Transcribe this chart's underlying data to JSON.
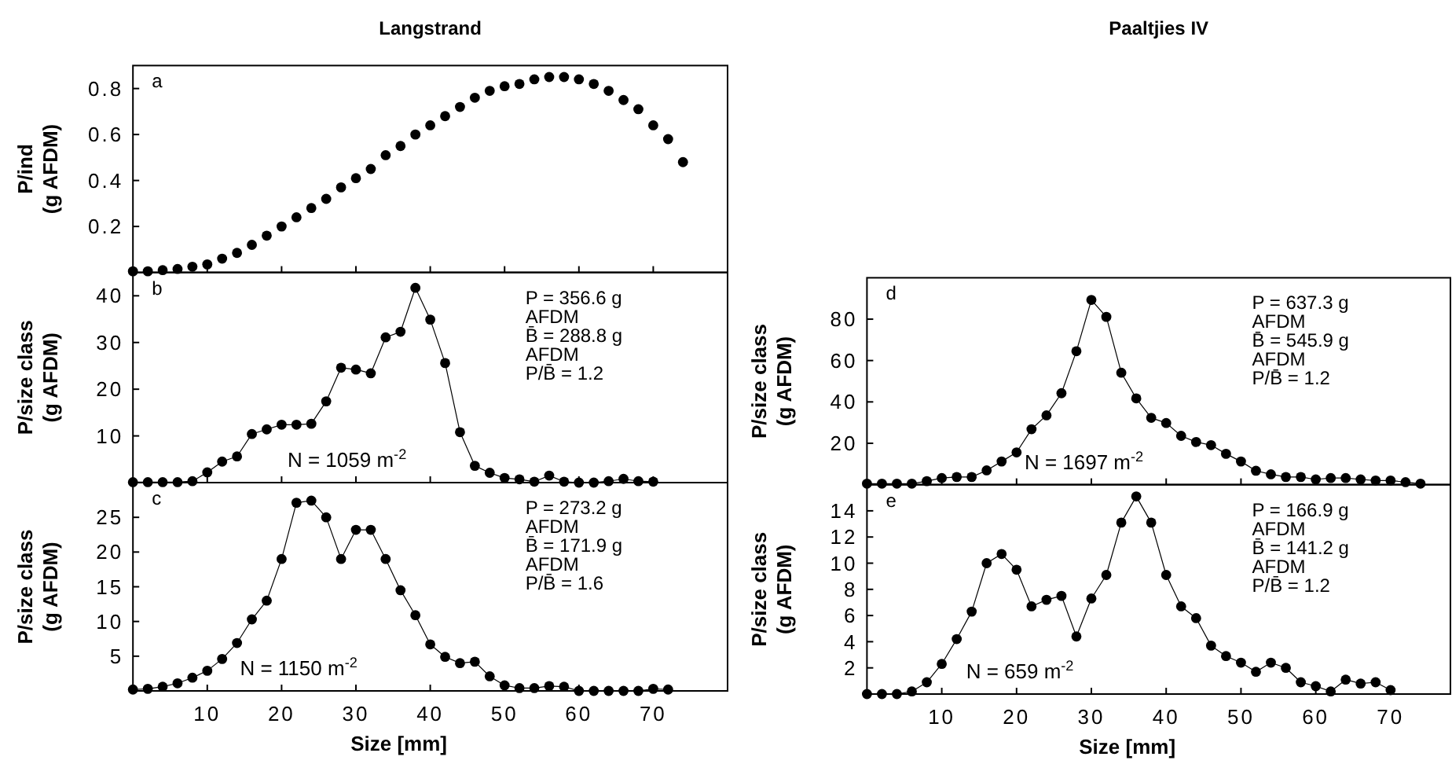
{
  "chart_data": [
    {
      "type": "scatter",
      "title": "Langstrand",
      "ylabel": "P/ind\n(g AFDM)",
      "marker": "circle",
      "tick_labels": "y",
      "x": [
        0,
        2,
        4,
        6,
        8,
        10,
        12,
        14,
        16,
        18,
        20,
        22,
        24,
        26,
        28,
        30,
        32,
        34,
        36,
        38,
        40,
        42,
        44,
        46,
        48,
        50,
        52,
        54,
        56,
        58,
        60,
        62,
        64,
        66,
        68,
        70,
        72,
        74
      ],
      "values": [
        0.005,
        0.005,
        0.01,
        0.015,
        0.025,
        0.035,
        0.06,
        0.085,
        0.12,
        0.16,
        0.2,
        0.24,
        0.28,
        0.32,
        0.37,
        0.41,
        0.45,
        0.51,
        0.55,
        0.6,
        0.64,
        0.68,
        0.72,
        0.76,
        0.79,
        0.81,
        0.82,
        0.84,
        0.85,
        0.85,
        0.84,
        0.82,
        0.79,
        0.75,
        0.71,
        0.64,
        0.58,
        0.48
      ],
      "color": "#000000",
      "xlim": [
        0,
        80
      ],
      "xticks": [
        10,
        20,
        30,
        40,
        50,
        60,
        70
      ],
      "ylim": [
        0,
        0.9
      ],
      "yticks": [
        0.2,
        0.4,
        0.6,
        0.8
      ],
      "annotations": [
        "a"
      ]
    },
    {
      "type": "line",
      "ylabel": "P/size class\n(g AFDM)",
      "marker": "circle",
      "line_style": "solid",
      "tick_labels": "y",
      "x": [
        0,
        2,
        4,
        6,
        8,
        10,
        12,
        14,
        16,
        18,
        20,
        22,
        24,
        26,
        28,
        30,
        32,
        34,
        36,
        38,
        40,
        42,
        44,
        46,
        48,
        50,
        52,
        54,
        56,
        58,
        60,
        62,
        64,
        66,
        68,
        70
      ],
      "values": [
        0.1,
        0.1,
        0.1,
        0.1,
        0.3,
        2.2,
        4.5,
        5.6,
        10.4,
        11.4,
        12.4,
        12.4,
        12.6,
        17.4,
        24.6,
        24.2,
        23.4,
        31.1,
        32.3,
        41.7,
        34.9,
        25.6,
        10.8,
        3.6,
        2.1,
        1.0,
        0.7,
        0.2,
        1.5,
        0.2,
        0,
        0,
        0.3,
        0.8,
        0.3,
        0.2
      ],
      "color": "#000000",
      "xlim": [
        0,
        80
      ],
      "xticks": [
        10,
        20,
        30,
        40,
        50,
        60,
        70
      ],
      "ylim": [
        0,
        45
      ],
      "yticks": [
        10,
        20,
        30,
        40
      ],
      "annotations": [
        "b",
        "P = 356.6 g",
        "AFDM",
        "B̄ = 288.8 g",
        "AFDM",
        "P/B̄ = 1.2",
        "N = 1059 m$^{-2}$"
      ]
    },
    {
      "type": "line",
      "title": "Paaltjies IV",
      "ylabel": "P/size class\n(g AFDM)",
      "marker": "circle",
      "line_style": "solid",
      "tick_labels": "y",
      "x": [
        0,
        2,
        4,
        6,
        8,
        10,
        12,
        14,
        16,
        18,
        20,
        22,
        24,
        26,
        28,
        30,
        32,
        34,
        36,
        38,
        40,
        42,
        44,
        46,
        48,
        50,
        52,
        54,
        56,
        58,
        60,
        62,
        64,
        66,
        68,
        70,
        72,
        74
      ],
      "values": [
        0.5,
        0.5,
        0.5,
        0.5,
        1.7,
        3.2,
        3.7,
        3.7,
        6.9,
        11.2,
        15.6,
        26.8,
        33.5,
        44.2,
        64.5,
        89.3,
        81.1,
        54.1,
        41.7,
        32.3,
        29.8,
        23.6,
        20.6,
        19.1,
        14.9,
        11.2,
        6.7,
        5.0,
        3.7,
        3.7,
        2.5,
        3.2,
        3.2,
        2.5,
        2.0,
        2.0,
        1.2,
        0.5
      ],
      "color": "#000000",
      "xlim": [
        0,
        78
      ],
      "xticks": [
        10,
        20,
        30,
        40,
        50,
        60,
        70
      ],
      "ylim": [
        0,
        100
      ],
      "yticks": [
        20,
        40,
        60,
        80
      ],
      "annotations": [
        "d",
        "P = 637.3 g",
        "AFDM",
        "B̄ = 545.9 g",
        "AFDM",
        "P/B̄ = 1.2",
        "N = 1697 m$^{-2}$"
      ]
    },
    {
      "type": "line",
      "xlabel": "Size [mm]",
      "ylabel": "P/size class\n(g AFDM)",
      "marker": "circle",
      "line_style": "solid",
      "x": [
        0,
        2,
        4,
        6,
        8,
        10,
        12,
        14,
        16,
        18,
        20,
        22,
        24,
        26,
        28,
        30,
        32,
        34,
        36,
        38,
        40,
        42,
        44,
        46,
        48,
        50,
        52,
        54,
        56,
        58,
        60,
        62,
        64,
        66,
        68,
        70,
        72
      ],
      "values": [
        0.2,
        0.3,
        0.6,
        1.1,
        1.9,
        2.9,
        4.6,
        6.9,
        10.3,
        13.0,
        19.0,
        27.1,
        27.4,
        25.0,
        19.0,
        23.2,
        23.2,
        19.0,
        14.5,
        10.9,
        6.7,
        4.9,
        4.0,
        4.2,
        2.1,
        0.8,
        0.4,
        0.4,
        0.7,
        0.6,
        0,
        0,
        0,
        0,
        0,
        0.3,
        0.2
      ],
      "color": "#000000",
      "xlim": [
        0,
        80
      ],
      "xticks": [
        10,
        20,
        30,
        40,
        50,
        60,
        70
      ],
      "ylim": [
        0,
        30
      ],
      "yticks": [
        5,
        10,
        15,
        20,
        25
      ],
      "annotations": [
        "c",
        "P = 273.2 g",
        "AFDM",
        "B̄ = 171.9 g",
        "AFDM",
        "P/B̄ = 1.6",
        "N = 1150 m$^{-2}$"
      ]
    },
    {
      "type": "line",
      "xlabel": "Size [mm]",
      "ylabel": "P/size class\n(g AFDM)",
      "marker": "circle",
      "line_style": "solid",
      "x": [
        0,
        2,
        4,
        6,
        8,
        10,
        12,
        14,
        16,
        18,
        20,
        22,
        24,
        26,
        28,
        30,
        32,
        34,
        36,
        38,
        40,
        42,
        44,
        46,
        48,
        50,
        52,
        54,
        56,
        58,
        60,
        62,
        64,
        66,
        68,
        70
      ],
      "values": [
        0,
        0,
        0,
        0.2,
        0.9,
        2.3,
        4.2,
        6.3,
        10.0,
        10.7,
        9.5,
        6.7,
        7.2,
        7.5,
        4.4,
        7.3,
        9.1,
        13.1,
        15.1,
        13.1,
        9.1,
        6.7,
        5.8,
        3.7,
        2.9,
        2.4,
        1.7,
        2.4,
        2.0,
        0.9,
        0.6,
        0.2,
        1.1,
        0.8,
        0.9,
        0.3
      ],
      "color": "#000000",
      "xlim": [
        0,
        78
      ],
      "xticks": [
        10,
        20,
        30,
        40,
        50,
        60,
        70
      ],
      "ylim": [
        0,
        16
      ],
      "yticks": [
        2,
        4,
        6,
        8,
        10,
        12,
        14
      ],
      "annotations": [
        "e",
        "P = 166.9 g",
        "AFDM",
        "B̄ = 141.2 g",
        "AFDM",
        "P/B̄ = 1.2",
        "N = 659 m$^{-2}$"
      ]
    }
  ]
}
